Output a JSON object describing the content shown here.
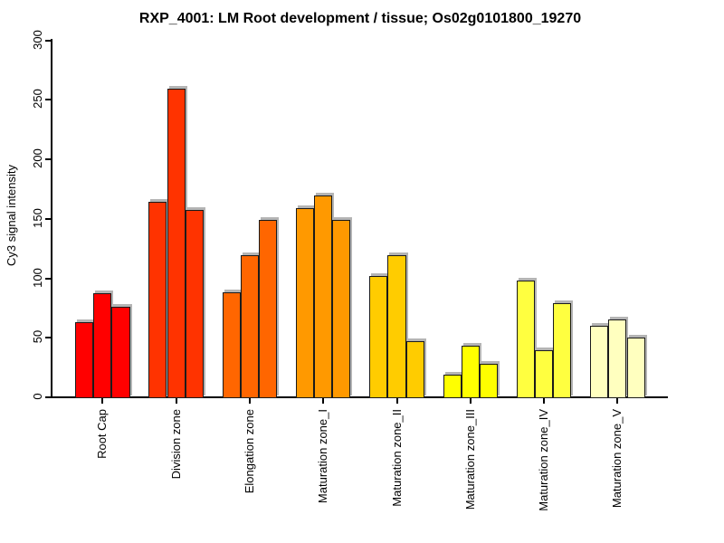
{
  "chart_data": {
    "type": "bar",
    "title": "RXP_4001: LM Root development / tissue; Os02g0101800_19270",
    "xlabel": "",
    "ylabel": "Cy3 signal intensity",
    "ylim": [
      0,
      300
    ],
    "yticks": [
      0,
      50,
      100,
      150,
      200,
      250,
      300
    ],
    "grid": false,
    "legend_position": "none",
    "bars_per_group": 3,
    "categories": [
      "Root Cap",
      "Division zone",
      "Elongation zone",
      "Maturation zone_I",
      "Maturation zone_II",
      "Maturation zone_III",
      "Maturation zone_IV",
      "Maturation zone_V"
    ],
    "values": [
      [
        64,
        88,
        77
      ],
      [
        165,
        260,
        158
      ],
      [
        89,
        120,
        150
      ],
      [
        160,
        170,
        150
      ],
      [
        103,
        120,
        48
      ],
      [
        20,
        44,
        29
      ],
      [
        99,
        40,
        80
      ],
      [
        61,
        66,
        51
      ]
    ],
    "bar_colors": [
      "#FF0000",
      "#FF3300",
      "#FF6600",
      "#FF9900",
      "#FFCC00",
      "#FFFF00",
      "#FFFF40",
      "#FFFFBF"
    ],
    "bar_border_color": "#1a1a1a",
    "bar_shadow_color": "#b4b4b4",
    "axis_color": "#000000",
    "background_color": "#ffffff"
  }
}
